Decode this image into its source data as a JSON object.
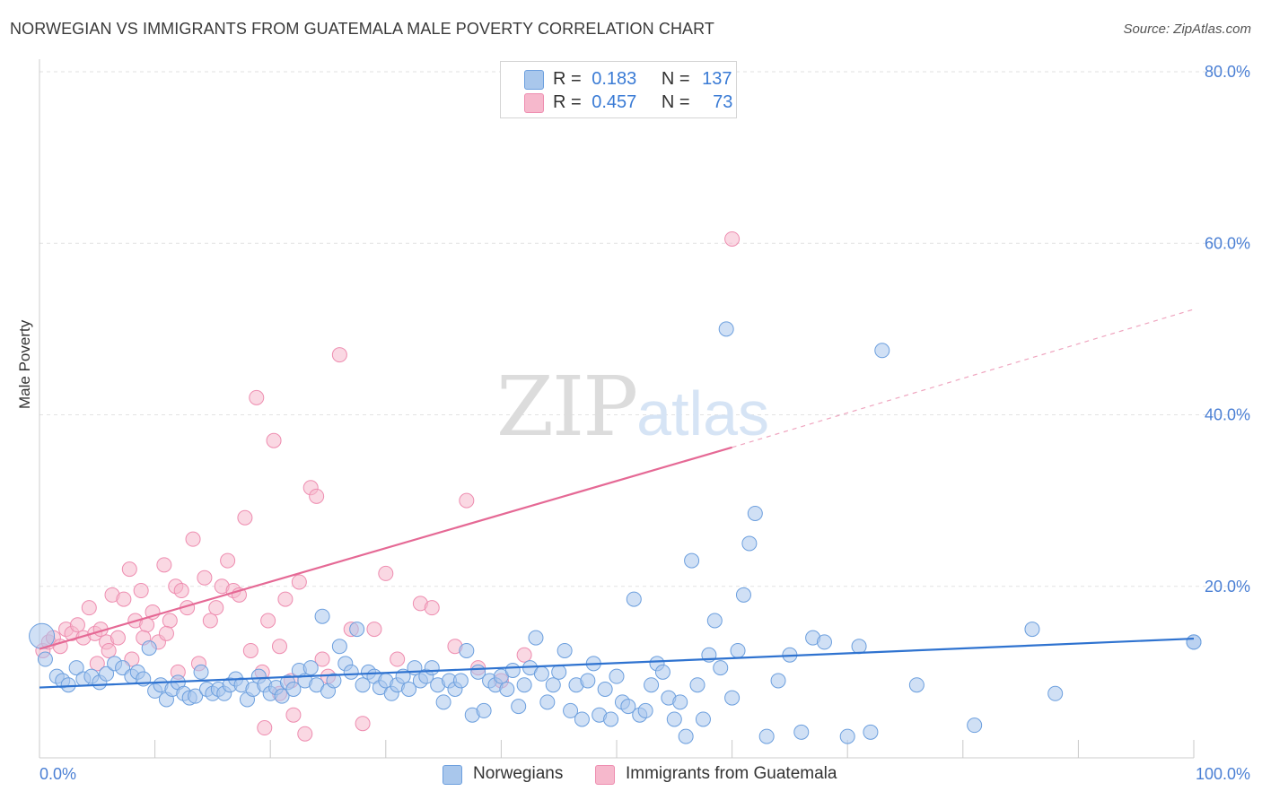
{
  "header": {
    "title": "NORWEGIAN VS IMMIGRANTS FROM GUATEMALA MALE POVERTY CORRELATION CHART",
    "source": "Source: ZipAtlas.com"
  },
  "watermark": {
    "zip": "ZIP",
    "atlas": "atlas"
  },
  "legend": {
    "rows": [
      {
        "r_label": "R =",
        "r_value": "0.183",
        "n_label": "N =",
        "n_value": "137"
      },
      {
        "r_label": "R =",
        "r_value": "0.457",
        "n_label": "N =",
        "n_value": "73"
      }
    ]
  },
  "colors": {
    "blue_fill": "#a9c7ec",
    "blue_stroke": "#6c9fde",
    "blue_line": "#2f73d0",
    "pink_fill": "#f6b8cc",
    "pink_stroke": "#ee8db0",
    "pink_line": "#e56995",
    "axis_text": "#4a7fd4",
    "grid": "#e2e2e2"
  },
  "chart_data": {
    "type": "scatter",
    "title": "NORWEGIAN VS IMMIGRANTS FROM GUATEMALA MALE POVERTY CORRELATION CHART",
    "xlabel": "",
    "ylabel": "Male Poverty",
    "xlim": [
      0,
      100
    ],
    "ylim": [
      0,
      80
    ],
    "x_tick_labels": [
      "0.0%",
      "100.0%"
    ],
    "y_tick_labels": [
      "20.0%",
      "40.0%",
      "60.0%",
      "80.0%"
    ],
    "y_ticks": [
      20,
      40,
      60,
      80
    ],
    "grid": "horizontal dashed",
    "legend_position": "top-center",
    "series": [
      {
        "name": "Norwegians",
        "trend": {
          "x": [
            0,
            100
          ],
          "y": [
            8.2,
            13.9
          ]
        },
        "points": [
          [
            0.2,
            14.2
          ],
          [
            0.5,
            11.5
          ],
          [
            1.5,
            9.5
          ],
          [
            2.0,
            9.0
          ],
          [
            2.5,
            8.5
          ],
          [
            3.2,
            10.5
          ],
          [
            3.8,
            9.2
          ],
          [
            4.5,
            9.5
          ],
          [
            5.2,
            8.8
          ],
          [
            5.8,
            9.8
          ],
          [
            6.5,
            11.0
          ],
          [
            7.2,
            10.5
          ],
          [
            8.0,
            9.5
          ],
          [
            8.5,
            10.0
          ],
          [
            9.0,
            9.2
          ],
          [
            9.5,
            12.8
          ],
          [
            10.0,
            7.8
          ],
          [
            10.5,
            8.5
          ],
          [
            11.0,
            6.8
          ],
          [
            11.5,
            8.0
          ],
          [
            12.0,
            8.8
          ],
          [
            12.5,
            7.5
          ],
          [
            13.0,
            7.0
          ],
          [
            13.5,
            7.2
          ],
          [
            14.0,
            10.0
          ],
          [
            14.5,
            8.0
          ],
          [
            15.0,
            7.5
          ],
          [
            15.5,
            8.0
          ],
          [
            16.0,
            7.5
          ],
          [
            16.5,
            8.5
          ],
          [
            17.0,
            9.2
          ],
          [
            17.5,
            8.5
          ],
          [
            18.0,
            6.8
          ],
          [
            18.5,
            8.0
          ],
          [
            19.0,
            9.5
          ],
          [
            19.5,
            8.5
          ],
          [
            20.0,
            7.5
          ],
          [
            20.5,
            8.2
          ],
          [
            21.0,
            7.2
          ],
          [
            21.5,
            8.8
          ],
          [
            22.0,
            8.0
          ],
          [
            22.5,
            10.2
          ],
          [
            23.0,
            9.0
          ],
          [
            23.5,
            10.5
          ],
          [
            24.0,
            8.5
          ],
          [
            24.5,
            16.5
          ],
          [
            25.0,
            7.8
          ],
          [
            25.5,
            9.0
          ],
          [
            26.0,
            13.0
          ],
          [
            26.5,
            11.0
          ],
          [
            27.0,
            10.0
          ],
          [
            27.5,
            15.0
          ],
          [
            28.0,
            8.5
          ],
          [
            28.5,
            10.0
          ],
          [
            29.0,
            9.5
          ],
          [
            29.5,
            8.2
          ],
          [
            30.0,
            9.0
          ],
          [
            30.5,
            7.5
          ],
          [
            31.0,
            8.5
          ],
          [
            31.5,
            9.5
          ],
          [
            32.0,
            8.0
          ],
          [
            32.5,
            10.5
          ],
          [
            33.0,
            9.0
          ],
          [
            33.5,
            9.5
          ],
          [
            34.0,
            10.5
          ],
          [
            34.5,
            8.5
          ],
          [
            35.0,
            6.5
          ],
          [
            35.5,
            9.0
          ],
          [
            36.0,
            8.0
          ],
          [
            36.5,
            9.0
          ],
          [
            37.0,
            12.5
          ],
          [
            37.5,
            5.0
          ],
          [
            38.0,
            10.0
          ],
          [
            38.5,
            5.5
          ],
          [
            39.0,
            9.0
          ],
          [
            39.5,
            8.5
          ],
          [
            40.0,
            9.5
          ],
          [
            40.5,
            8.0
          ],
          [
            41.0,
            10.2
          ],
          [
            41.5,
            6.0
          ],
          [
            42.0,
            8.5
          ],
          [
            42.5,
            10.5
          ],
          [
            43.0,
            14.0
          ],
          [
            43.5,
            9.8
          ],
          [
            44.0,
            6.5
          ],
          [
            44.5,
            8.5
          ],
          [
            45.0,
            10.0
          ],
          [
            45.5,
            12.5
          ],
          [
            46.0,
            5.5
          ],
          [
            46.5,
            8.5
          ],
          [
            47.0,
            4.5
          ],
          [
            47.5,
            9.0
          ],
          [
            48.0,
            11.0
          ],
          [
            48.5,
            5.0
          ],
          [
            49.0,
            8.0
          ],
          [
            49.5,
            4.5
          ],
          [
            50.0,
            9.5
          ],
          [
            50.5,
            6.5
          ],
          [
            51.0,
            6.0
          ],
          [
            51.5,
            18.5
          ],
          [
            52.0,
            5.0
          ],
          [
            52.5,
            5.5
          ],
          [
            53.0,
            8.5
          ],
          [
            53.5,
            11.0
          ],
          [
            54.0,
            10.0
          ],
          [
            54.5,
            7.0
          ],
          [
            55.0,
            4.5
          ],
          [
            55.5,
            6.5
          ],
          [
            56.0,
            2.5
          ],
          [
            56.5,
            23.0
          ],
          [
            57.0,
            8.5
          ],
          [
            57.5,
            4.5
          ],
          [
            58.0,
            12.0
          ],
          [
            58.5,
            16.0
          ],
          [
            59.0,
            10.5
          ],
          [
            59.5,
            50.0
          ],
          [
            60.0,
            7.0
          ],
          [
            60.5,
            12.5
          ],
          [
            61.0,
            19.0
          ],
          [
            61.5,
            25.0
          ],
          [
            62.0,
            28.5
          ],
          [
            63.0,
            2.5
          ],
          [
            64.0,
            9.0
          ],
          [
            65.0,
            12.0
          ],
          [
            66.0,
            3.0
          ],
          [
            67.0,
            14.0
          ],
          [
            68.0,
            13.5
          ],
          [
            70.0,
            2.5
          ],
          [
            71.0,
            13.0
          ],
          [
            72.0,
            3.0
          ],
          [
            73.0,
            47.5
          ],
          [
            76.0,
            8.5
          ],
          [
            81.0,
            3.8
          ],
          [
            86.0,
            15.0
          ],
          [
            88.0,
            7.5
          ],
          [
            100.0,
            13.5
          ],
          [
            100.0,
            13.5
          ]
        ]
      },
      {
        "name": "Immigrants from Guatemala",
        "trend": {
          "x": [
            0,
            60
          ],
          "y": [
            12.7,
            36.2
          ],
          "dashed_to": {
            "x": 100,
            "y": 52.3
          }
        },
        "points": [
          [
            0.3,
            12.5
          ],
          [
            0.8,
            13.5
          ],
          [
            1.2,
            14.0
          ],
          [
            1.8,
            13.0
          ],
          [
            2.3,
            15.0
          ],
          [
            2.8,
            14.5
          ],
          [
            3.3,
            15.5
          ],
          [
            3.8,
            14.0
          ],
          [
            4.3,
            17.5
          ],
          [
            4.8,
            14.5
          ],
          [
            5.3,
            15.0
          ],
          [
            5.8,
            13.5
          ],
          [
            6.3,
            19.0
          ],
          [
            6.8,
            14.0
          ],
          [
            7.3,
            18.5
          ],
          [
            7.8,
            22.0
          ],
          [
            8.3,
            16.0
          ],
          [
            8.8,
            19.5
          ],
          [
            9.3,
            15.5
          ],
          [
            9.8,
            17.0
          ],
          [
            10.3,
            13.5
          ],
          [
            10.8,
            22.5
          ],
          [
            11.3,
            16.0
          ],
          [
            11.8,
            20.0
          ],
          [
            12.3,
            19.5
          ],
          [
            12.8,
            17.5
          ],
          [
            13.3,
            25.5
          ],
          [
            13.8,
            11.0
          ],
          [
            14.3,
            21.0
          ],
          [
            14.8,
            16.0
          ],
          [
            15.3,
            17.5
          ],
          [
            15.8,
            20.0
          ],
          [
            16.3,
            23.0
          ],
          [
            16.8,
            19.5
          ],
          [
            17.3,
            19.0
          ],
          [
            17.8,
            28.0
          ],
          [
            18.3,
            12.5
          ],
          [
            18.8,
            42.0
          ],
          [
            19.3,
            10.0
          ],
          [
            19.8,
            16.0
          ],
          [
            20.3,
            37.0
          ],
          [
            20.8,
            13.0
          ],
          [
            21.3,
            18.5
          ],
          [
            21.8,
            9.0
          ],
          [
            22.5,
            20.5
          ],
          [
            23.0,
            2.8
          ],
          [
            23.5,
            31.5
          ],
          [
            24.0,
            30.5
          ],
          [
            24.5,
            11.5
          ],
          [
            25.0,
            9.5
          ],
          [
            26.0,
            47.0
          ],
          [
            27.0,
            15.0
          ],
          [
            28.0,
            4.0
          ],
          [
            29.0,
            15.0
          ],
          [
            30.0,
            21.5
          ],
          [
            31.0,
            11.5
          ],
          [
            33.0,
            18.0
          ],
          [
            34.0,
            17.5
          ],
          [
            36.0,
            13.0
          ],
          [
            37.0,
            30.0
          ],
          [
            38.0,
            10.5
          ],
          [
            40.0,
            9.0
          ],
          [
            42.0,
            12.0
          ],
          [
            60.0,
            60.5
          ],
          [
            20.8,
            7.5
          ],
          [
            22.0,
            5.0
          ],
          [
            19.5,
            3.5
          ],
          [
            12.0,
            10.0
          ],
          [
            11.0,
            14.5
          ],
          [
            9.0,
            14.0
          ],
          [
            8.0,
            11.5
          ],
          [
            6.0,
            12.5
          ],
          [
            5.0,
            11.0
          ]
        ]
      }
    ]
  },
  "bottom_legend": {
    "items": [
      {
        "label": "Norwegians"
      },
      {
        "label": "Immigrants from Guatemala"
      }
    ]
  }
}
